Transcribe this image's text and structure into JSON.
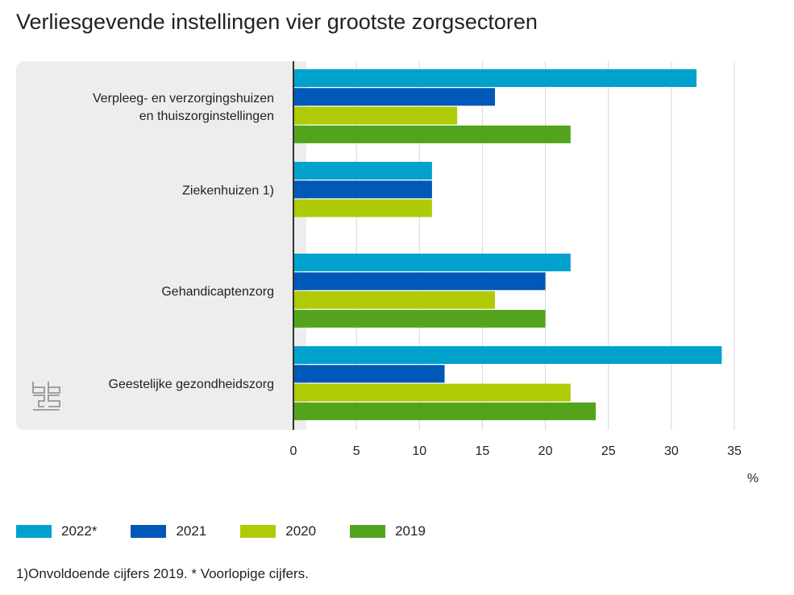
{
  "chart_data": {
    "type": "bar",
    "orientation": "horizontal",
    "title": "Verliesgevende instellingen vier grootste zorgsectoren",
    "categories": [
      [
        "Verpleeg- en verzorgingshuizen",
        "en thuiszorginstellingen"
      ],
      [
        "Ziekenhuizen 1)"
      ],
      [
        "Gehandicaptenzorg"
      ],
      [
        "Geestelijke gezondheidszorg"
      ]
    ],
    "series": [
      {
        "name": "2022*",
        "color": "#00a1cd",
        "values": [
          32,
          11,
          22,
          34
        ]
      },
      {
        "name": "2021",
        "color": "#0058b8",
        "values": [
          16,
          11,
          20,
          12
        ]
      },
      {
        "name": "2020",
        "color": "#afcb05",
        "values": [
          13,
          11,
          16,
          22
        ]
      },
      {
        "name": "2019",
        "color": "#53a31d",
        "values": [
          22,
          null,
          20,
          24
        ]
      }
    ],
    "xlim": [
      0,
      35
    ],
    "xticks": [
      0,
      5,
      10,
      15,
      20,
      25,
      30,
      35
    ],
    "xlabel": "%",
    "grid": true,
    "legend_position": "bottom",
    "footnote": "1)Onvoldoende cijfers 2019. * Voorlopige cijfers.",
    "logo": "cbs"
  }
}
